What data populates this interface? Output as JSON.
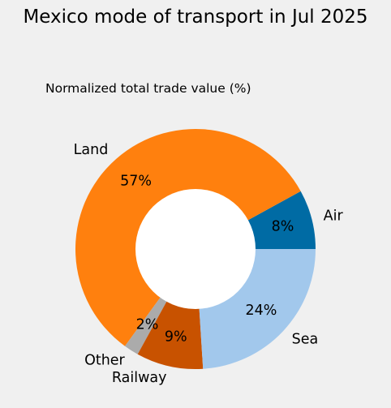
{
  "chart_data": {
    "type": "pie",
    "variant": "donut",
    "title": "Mexico mode of transport in Jul 2025",
    "subtitle": "Normalized total trade value (%)",
    "slices": [
      {
        "label": "Air",
        "value": 8,
        "pct_label": "8%",
        "color": "#006ba4"
      },
      {
        "label": "Land",
        "value": 57,
        "pct_label": "57%",
        "color": "#ff800e"
      },
      {
        "label": "Other",
        "value": 2,
        "pct_label": "2%",
        "color": "#ababab"
      },
      {
        "label": "Railway",
        "value": 9,
        "pct_label": "9%",
        "color": "#c85200"
      },
      {
        "label": "Sea",
        "value": 24,
        "pct_label": "24%",
        "color": "#a2c8ec"
      }
    ],
    "start_angle_deg": 0,
    "direction": "counterclockwise",
    "hole_color": "#ffffff",
    "background": "#f0f0f0"
  }
}
